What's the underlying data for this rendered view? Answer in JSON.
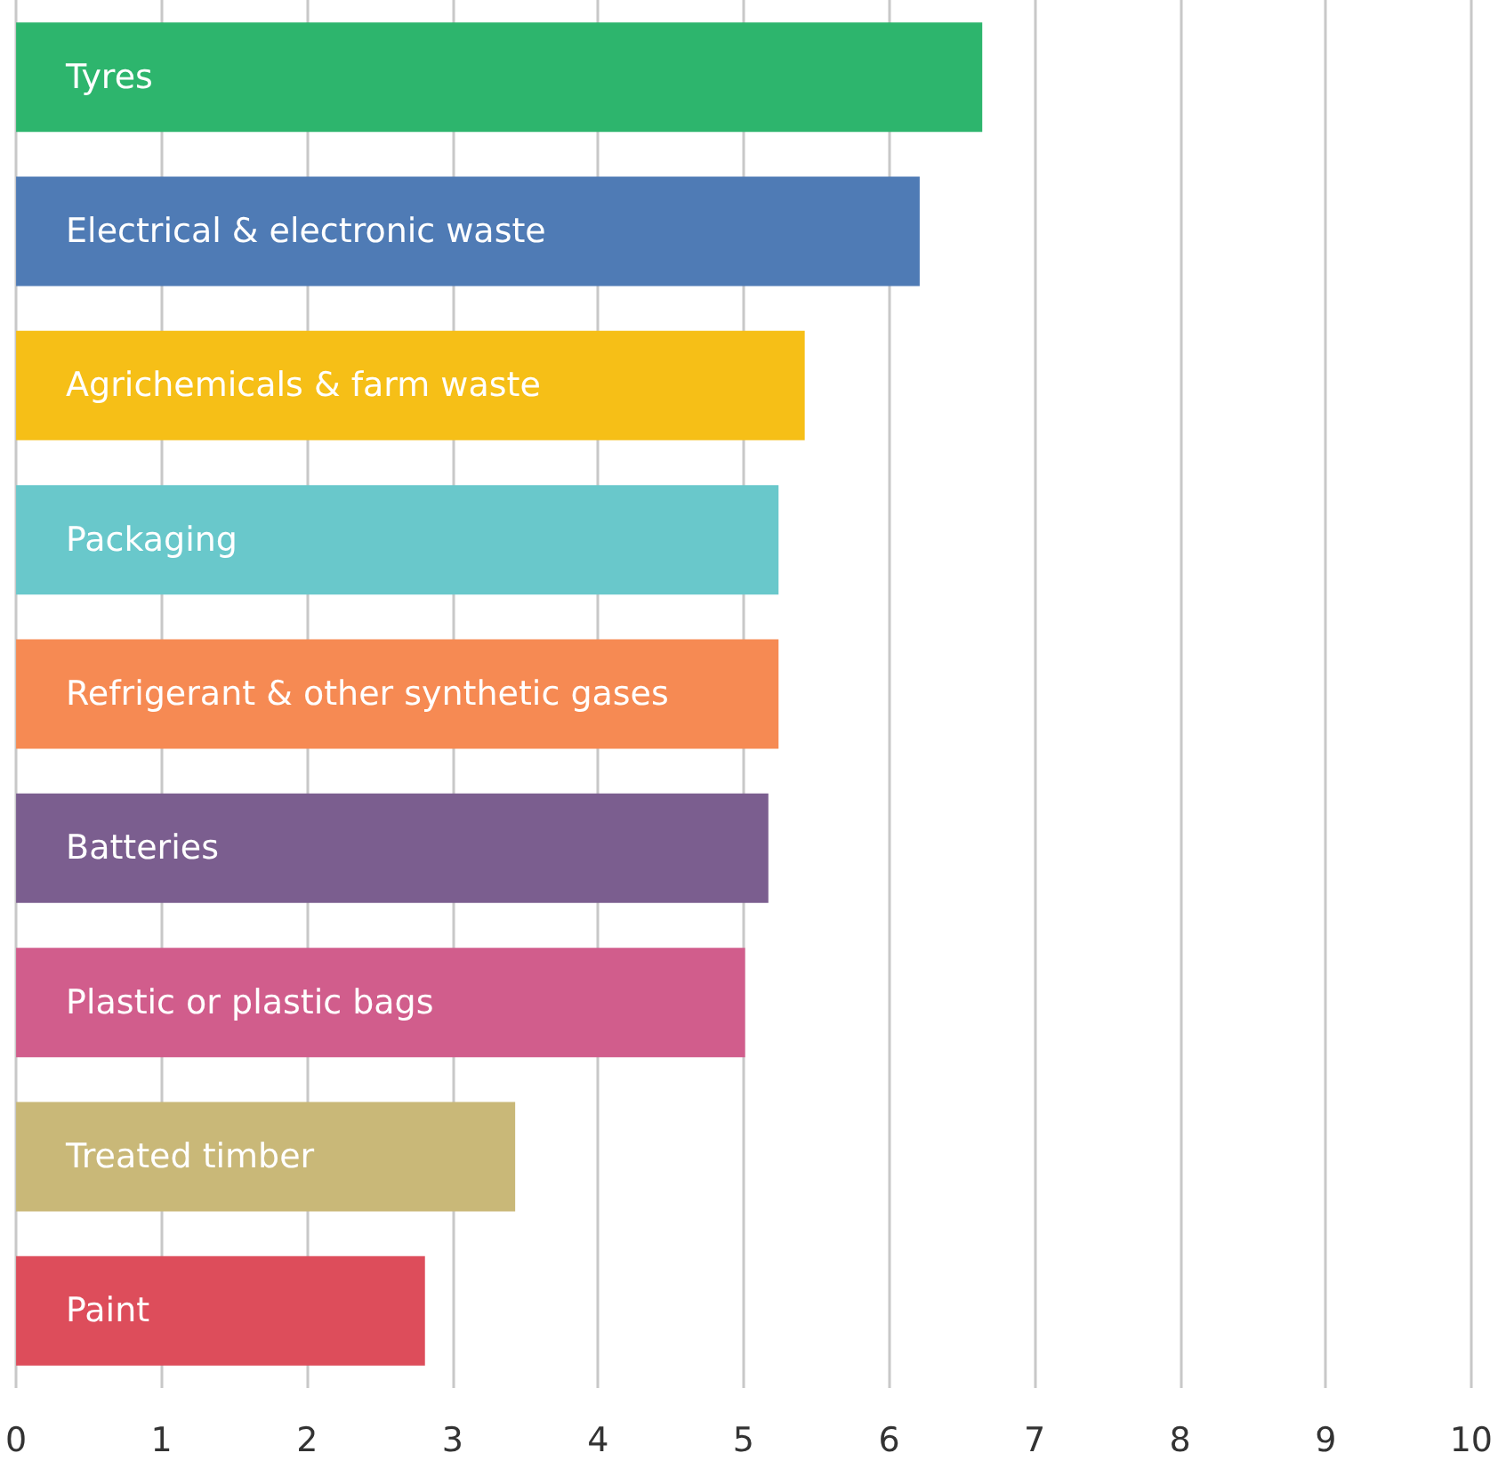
{
  "chart_data": {
    "type": "bar",
    "orientation": "horizontal",
    "categories": [
      "Tyres",
      "Electrical & electronic waste",
      "Agrichemicals & farm waste",
      "Packaging",
      "Refrigerant & other synthetic gases",
      "Batteries",
      "Plastic or plastic bags",
      "Treated timber",
      "Paint"
    ],
    "values": [
      6.64,
      6.21,
      5.42,
      5.24,
      5.24,
      5.17,
      5.01,
      3.43,
      2.81
    ],
    "colors": [
      "#2db56d",
      "#4f7bb5",
      "#f6bf17",
      "#69c8cb",
      "#f68a53",
      "#7b5e8f",
      "#d15d8c",
      "#c9b878",
      "#dd4d5b"
    ],
    "xlim": [
      0,
      10
    ],
    "xticks": [
      0,
      1,
      2,
      3,
      4,
      5,
      6,
      7,
      8,
      9,
      10
    ],
    "grid": "x"
  }
}
